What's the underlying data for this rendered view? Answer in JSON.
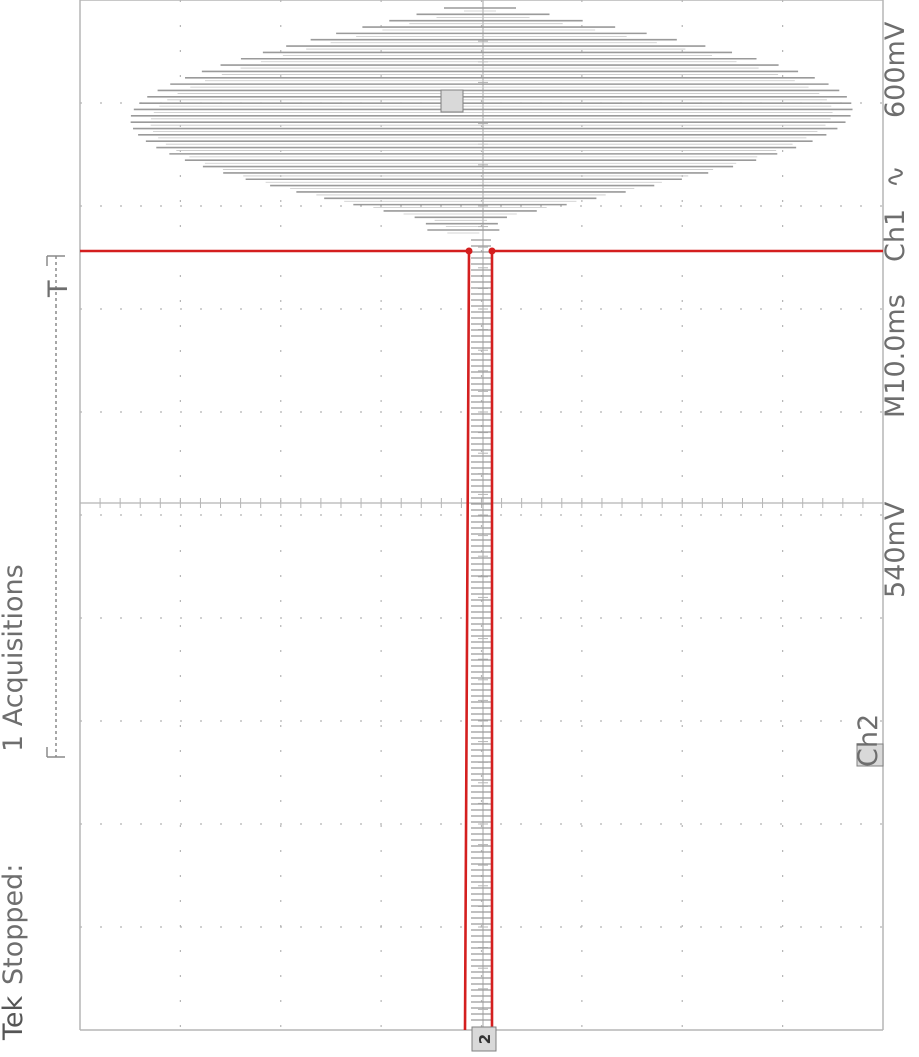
{
  "status": {
    "brand": "Tek",
    "state": "Stopped:",
    "acquisitions": "1 Acquisitions",
    "trigger_letter": "T"
  },
  "readouts": {
    "ch1_scale": "600mV",
    "ch1_label": "Ch1",
    "ch1_coupling_symbol": "∿",
    "timebase": "M10.0ms",
    "ch2_scale": "540mV",
    "ch2_label": "Ch2",
    "ch2_marker": "2"
  },
  "colors": {
    "ch1_trace": "#9a9a9a",
    "ch2_trace": "#d41f1f",
    "grid": "#b5b5b5",
    "text": "#6e6e6e"
  },
  "chart_data": {
    "type": "line",
    "grid": true,
    "x_divisions": 8,
    "y_divisions": 10,
    "series": [
      {
        "name": "Ch1",
        "volts_per_div": 0.6,
        "description_units": "dense oscillation burst with amplitude envelope growing then decaying"
      },
      {
        "name": "Ch2",
        "volts_per_div": 0.54,
        "pulse": {
          "baseline_div": 0,
          "low_div": -7.45,
          "start_div": -0.02,
          "end_div": 0.13
        }
      }
    ]
  }
}
